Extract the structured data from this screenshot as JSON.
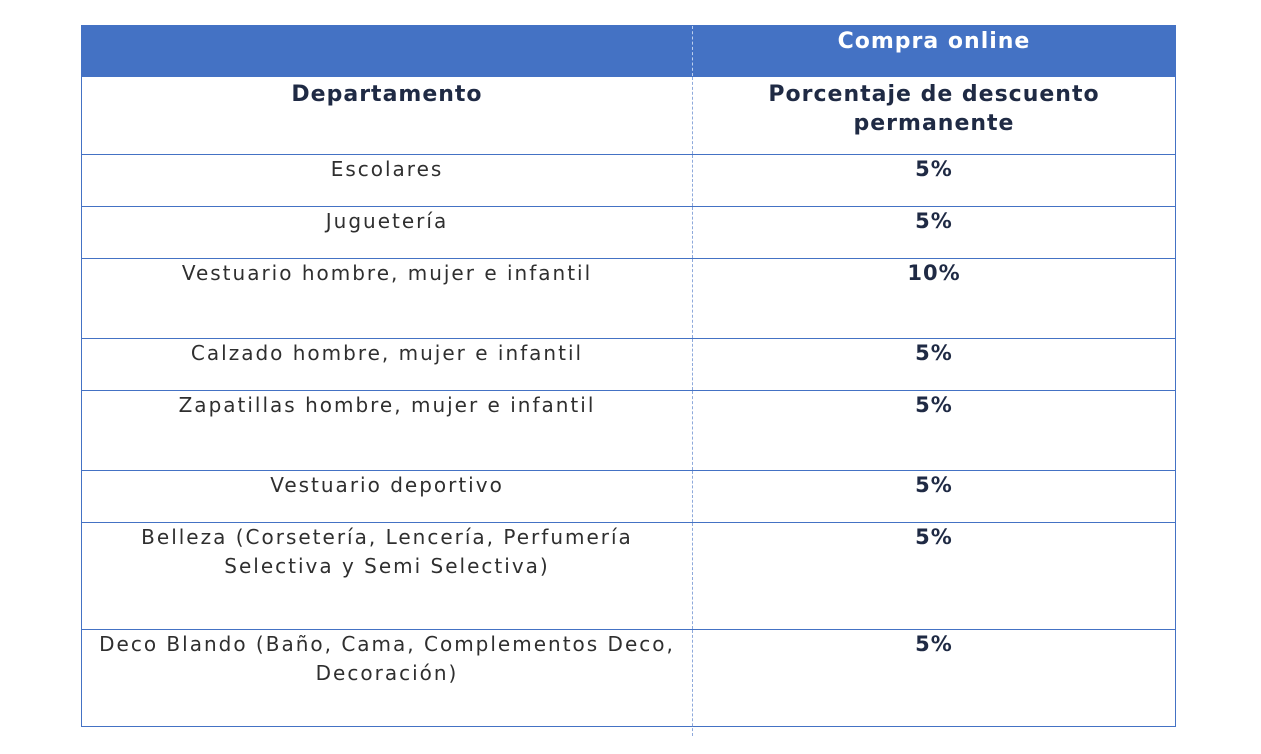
{
  "table": {
    "banner_left": "",
    "banner_right": "Compra online",
    "header_department": "Departamento",
    "header_discount": "Porcentaje de descuento permanente",
    "rows": [
      {
        "department": "Escolares",
        "discount": "5%"
      },
      {
        "department": "Juguetería",
        "discount": "5%"
      },
      {
        "department": "Vestuario hombre, mujer e infantil",
        "discount": "10%"
      },
      {
        "department": "Calzado hombre, mujer e infantil",
        "discount": "5%"
      },
      {
        "department": "Zapatillas hombre, mujer e infantil",
        "discount": "5%"
      },
      {
        "department": "Vestuario deportivo",
        "discount": "5%"
      },
      {
        "department": "Belleza (Corsetería, Lencería, Perfumería Selectiva y Semi Selectiva)",
        "discount": "5%"
      },
      {
        "department": "Deco Blando (Baño, Cama, Complementos Deco, Decoración)",
        "discount": "5%"
      }
    ]
  },
  "colors": {
    "header_band": "#4472C4",
    "border": "#4472C4",
    "text": "#1F2A44"
  }
}
